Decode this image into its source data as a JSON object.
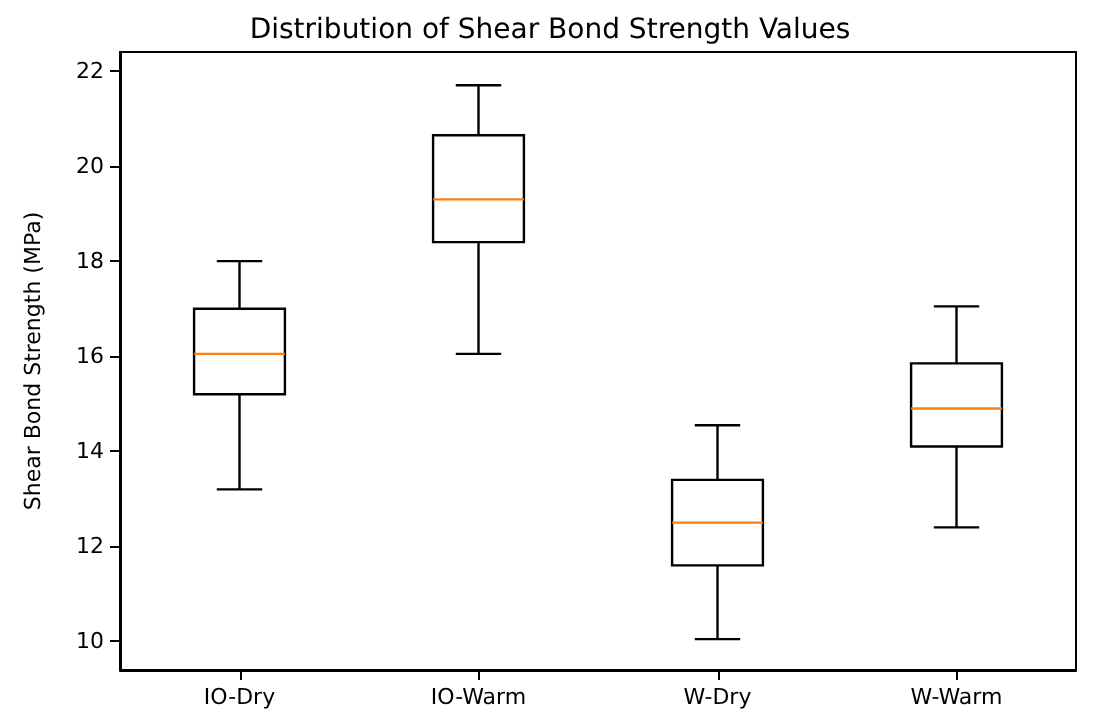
{
  "chart_data": {
    "type": "box",
    "title": "Distribution of Shear Bond Strength Values",
    "ylabel": "Shear Bond Strength (MPa)",
    "categories": [
      "IO-Dry",
      "IO-Warm",
      "W-Dry",
      "W-Warm"
    ],
    "series": [
      {
        "color": "#000000",
        "boxes": [
          {
            "low": 13.2,
            "q1": 15.2,
            "median": 16.05,
            "q3": 17.0,
            "high": 18.0
          },
          {
            "low": 16.05,
            "q1": 18.4,
            "median": 19.3,
            "q3": 20.65,
            "high": 21.7
          },
          {
            "low": 10.05,
            "q1": 11.6,
            "median": 12.5,
            "q3": 13.4,
            "high": 14.55
          },
          {
            "low": 12.4,
            "q1": 14.1,
            "median": 14.9,
            "q3": 15.85,
            "high": 17.05
          }
        ]
      }
    ],
    "ylim": [
      9.4,
      22.4
    ],
    "yticks": [
      10,
      12,
      14,
      16,
      18,
      20,
      22
    ],
    "grid": false
  }
}
